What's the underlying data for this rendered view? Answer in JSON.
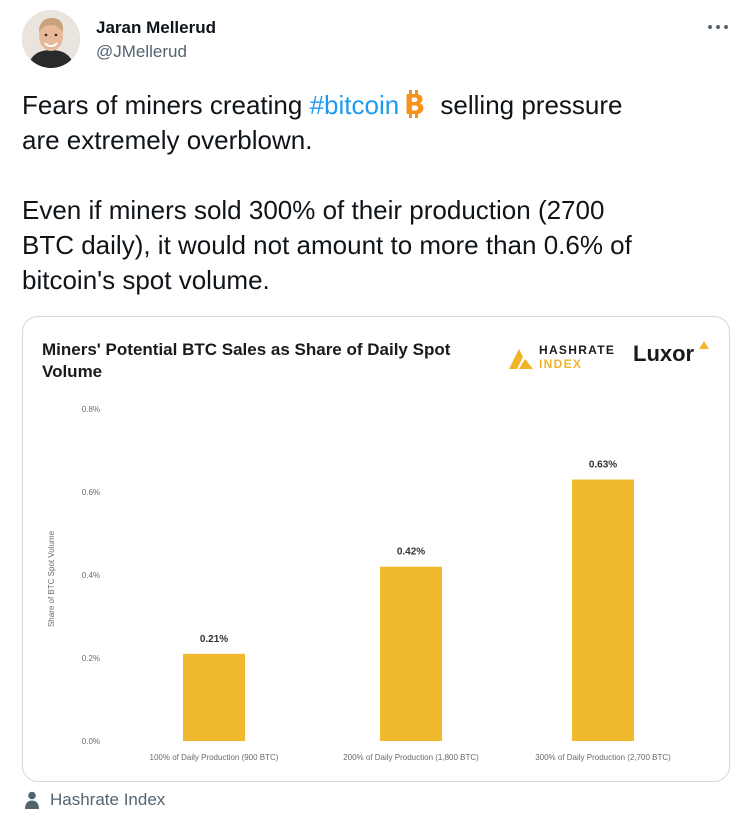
{
  "tweet": {
    "author_name": "Jaran Mellerud",
    "author_handle": "@JMellerud",
    "text_line1_before": "Fears of miners creating ",
    "hashtag": "#bitcoin",
    "text_line1_after": " selling pressure",
    "text_line2": "are extremely overblown.",
    "text_para2_line1": "Even if miners sold 300% of their production (2700",
    "text_para2_line2": "BTC daily), it would not amount to more than 0.6% of",
    "text_para2_line3": "bitcoin's spot volume.",
    "emoji": "bitcoin-emoji"
  },
  "card": {
    "brand_hashrate": "HASHRATE",
    "brand_index": "INDEX",
    "brand_luxor": "Luxor",
    "source_label": "Hashrate Index",
    "colors": {
      "bar": "#f0b92f",
      "accent": "#f0b429",
      "link": "#1d9bf0"
    }
  },
  "chart_data": {
    "type": "bar",
    "title": "Miners' Potential BTC Sales as Share of Daily Spot Volume",
    "ylabel": "Share of BTC Spot Volume",
    "xlabel": "",
    "categories": [
      "100% of Daily Production (900 BTC)",
      "200% of Daily Production (1,800 BTC)",
      "300% of Daily Production (2,700 BTC)"
    ],
    "values": [
      0.21,
      0.42,
      0.63
    ],
    "value_labels": [
      "0.21%",
      "0.42%",
      "0.63%"
    ],
    "ylim": [
      0,
      0.8
    ],
    "yticks": [
      "0.0%",
      "0.2%",
      "0.4%",
      "0.6%",
      "0.8%"
    ],
    "ytick_values": [
      0,
      0.2,
      0.4,
      0.6,
      0.8
    ],
    "grid": false
  }
}
